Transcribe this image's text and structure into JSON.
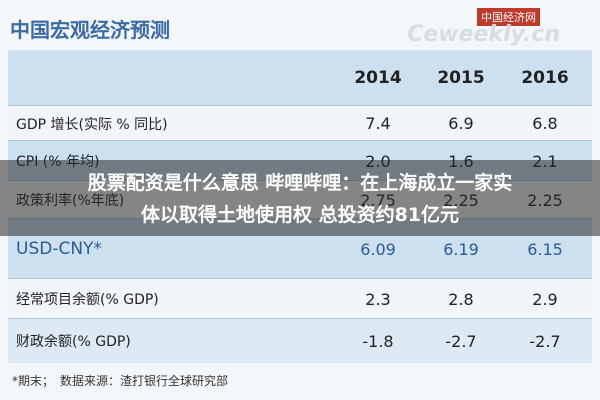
{
  "header": {
    "title": "中国宏观经济预测",
    "logo": "中国经济网",
    "logo_url": "Ceweekly.cn"
  },
  "table": {
    "columns": [
      "2014",
      "2015",
      "2016"
    ],
    "rows": [
      [
        "GDP 增长(实际 % 同比)",
        "7.4",
        "6.9",
        "6.8"
      ],
      [
        "CPI (% 年均)",
        "2.0",
        "1.6",
        "2.1"
      ],
      [
        "政策利率(%年底)",
        "2.75",
        "2.25",
        "2.25"
      ],
      [
        "USD-CNY*",
        "6.09",
        "6.19",
        "6.15"
      ],
      [
        "经常项目余额(% GDP)",
        "2.3",
        "2.8",
        "2.9"
      ],
      [
        "财政余额(% GDP)",
        "-1.8",
        "-2.7",
        "-2.7"
      ]
    ]
  },
  "footnote": "*期末；　数据来源：渣打银行全球研究部",
  "overlay": {
    "lines": [
      "股票配资是什么意思 哔哩哔哩：在上海成立一家实",
      "体以取得土地使用权 总投资约81亿元"
    ]
  }
}
